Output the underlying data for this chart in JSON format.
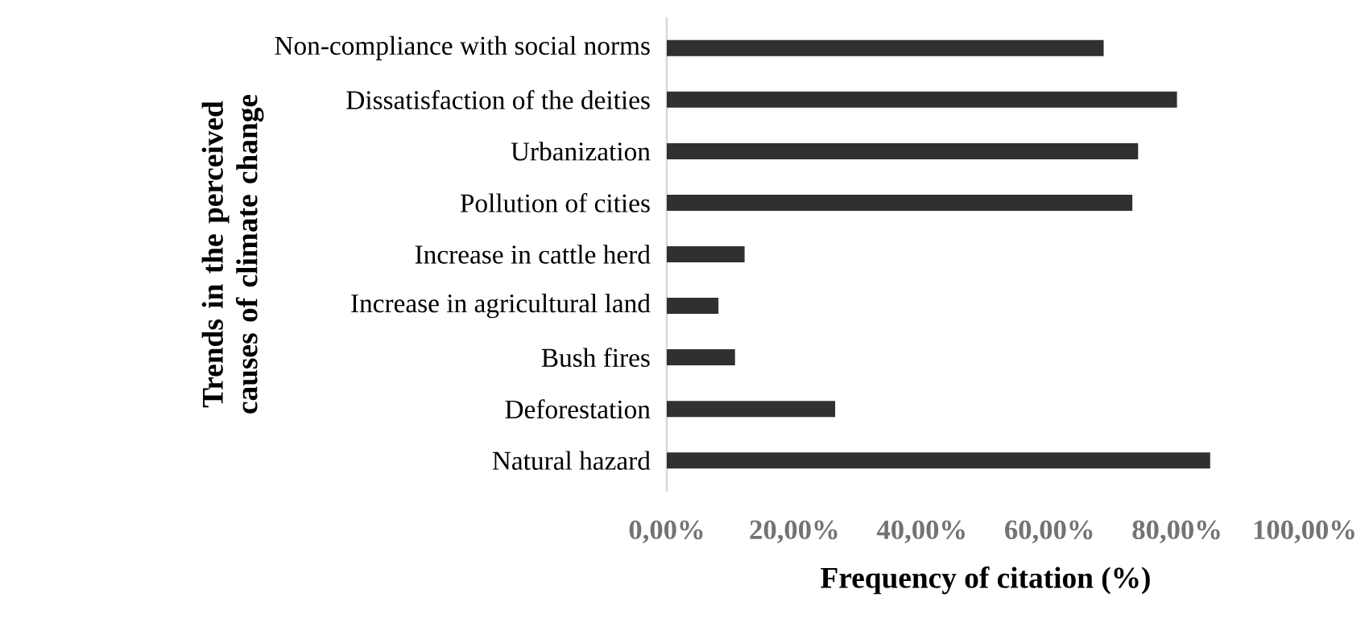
{
  "chart_data": {
    "type": "bar",
    "orientation": "horizontal",
    "xlabel": "Frequency of citation (%)",
    "ylabel": "Trends in the perceived causes of climate change",
    "categories": [
      "Non-compliance with social norms",
      "Dissatisfaction of the deities",
      "Urbanization",
      "Pollution of cities",
      "Increase in cattle herd",
      "Increase in agricultural land",
      "Bush fires",
      "Deforestation",
      "Natural hazard"
    ],
    "values": [
      68.5,
      80.0,
      73.9,
      73.0,
      12.2,
      8.1,
      10.7,
      26.4,
      85.2
    ],
    "color": "#303030",
    "xlim": [
      0,
      100
    ],
    "xticks": [
      {
        "value": 0,
        "label": "0,00%"
      },
      {
        "value": 20,
        "label": "20,00%"
      },
      {
        "value": 40,
        "label": "40,00%"
      },
      {
        "value": 60,
        "label": "60,00%"
      },
      {
        "value": 80,
        "label": "80,00%"
      },
      {
        "value": 100,
        "label": "100,00%"
      }
    ],
    "grid": false
  }
}
